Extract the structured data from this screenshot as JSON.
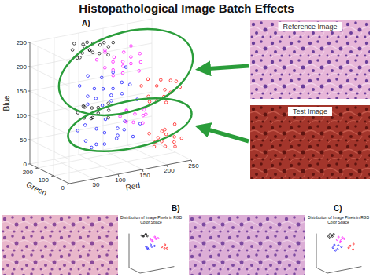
{
  "title": "Histopathological Image Batch Effects",
  "images": [
    {
      "label": "Reference Image"
    },
    {
      "label": "Test Image"
    }
  ],
  "chart_data": [
    {
      "panel": "A)",
      "type": "scatter3d",
      "x_label": "Red",
      "y_label": "Green",
      "z_label": "Blue",
      "xlim": [
        0,
        250
      ],
      "ylim": [
        0,
        250
      ],
      "zlim": [
        0,
        250
      ],
      "xticks": [
        50,
        100,
        150,
        200,
        250
      ],
      "yticks": [
        0,
        100,
        200
      ],
      "zticks": [
        0,
        50,
        100,
        150,
        200,
        250
      ],
      "grid": true,
      "series": [
        {
          "color": "#000000",
          "marker": "o",
          "points": [
            [
              55,
              150,
              240
            ],
            [
              65,
              170,
              248
            ],
            [
              72,
              140,
              232
            ],
            [
              80,
              160,
              245
            ],
            [
              88,
              175,
              236
            ],
            [
              95,
              145,
              228
            ],
            [
              102,
              165,
              242
            ],
            [
              110,
              150,
              222
            ],
            [
              118,
              170,
              235
            ],
            [
              125,
              140,
              218
            ],
            [
              132,
              160,
              230
            ],
            [
              60,
              135,
              225
            ],
            [
              85,
              150,
              250
            ],
            [
              100,
              180,
              226
            ],
            [
              140,
              155,
              238
            ],
            [
              75,
              165,
              218
            ],
            [
              115,
              135,
              246
            ],
            [
              92,
              155,
              232
            ]
          ]
        },
        {
          "color": "#ff00ff",
          "marker": "o",
          "points": [
            [
              105,
              150,
              210
            ],
            [
              115,
              130,
              195
            ],
            [
              125,
              160,
              220
            ],
            [
              135,
              140,
              185
            ],
            [
              145,
              165,
              205
            ],
            [
              150,
              125,
              178
            ],
            [
              160,
              150,
              215
            ],
            [
              170,
              135,
              192
            ],
            [
              178,
              160,
              200
            ],
            [
              185,
              130,
              175
            ],
            [
              195,
              150,
              188
            ],
            [
              120,
              145,
              228
            ],
            [
              140,
              155,
              170
            ],
            [
              165,
              170,
              182
            ],
            [
              190,
              140,
              208
            ],
            [
              155,
              140,
              198
            ],
            [
              130,
              125,
              205
            ],
            [
              175,
              150,
              225
            ]
          ]
        },
        {
          "color": "#0000ff",
          "marker": "o",
          "points": [
            [
              60,
              120,
              170
            ],
            [
              70,
              100,
              150
            ],
            [
              80,
              130,
              185
            ],
            [
              90,
              110,
              140
            ],
            [
              100,
              95,
              160
            ],
            [
              110,
              135,
              175
            ],
            [
              120,
              105,
              130
            ],
            [
              130,
              125,
              150
            ],
            [
              140,
              100,
              165
            ],
            [
              150,
              130,
              135
            ],
            [
              160,
              110,
              155
            ],
            [
              170,
              95,
              125
            ],
            [
              75,
              115,
              130
            ],
            [
              95,
              135,
              155
            ],
            [
              115,
              90,
              145
            ],
            [
              135,
              140,
              180
            ],
            [
              155,
              120,
              190
            ],
            [
              105,
              115,
              122
            ]
          ]
        },
        {
          "color": "#ff0000",
          "marker": "o",
          "points": [
            [
              180,
              100,
              150
            ],
            [
              188,
              80,
              130
            ],
            [
              195,
              105,
              160
            ],
            [
              202,
              70,
              120
            ],
            [
              210,
              95,
              145
            ],
            [
              218,
              60,
              115
            ],
            [
              225,
              90,
              135
            ],
            [
              232,
              75,
              155
            ],
            [
              240,
              100,
              125
            ],
            [
              248,
              65,
              140
            ],
            [
              200,
              110,
              112
            ],
            [
              215,
              85,
              158
            ],
            [
              228,
              105,
              118
            ],
            [
              245,
              80,
              150
            ]
          ]
        },
        {
          "color": "#000000",
          "marker": "o",
          "points": [
            [
              50,
              100,
              120
            ],
            [
              58,
              85,
              110
            ],
            [
              66,
              115,
              128
            ],
            [
              74,
              90,
              105
            ],
            [
              82,
              110,
              122
            ],
            [
              90,
              95,
              112
            ],
            [
              98,
              120,
              118
            ],
            [
              106,
              80,
              102
            ],
            [
              114,
              105,
              126
            ],
            [
              62,
              95,
              130
            ],
            [
              86,
              118,
              100
            ],
            [
              110,
              90,
              115
            ]
          ]
        },
        {
          "color": "#0000ff",
          "marker": "o",
          "points": [
            [
              40,
              70,
              90
            ],
            [
              50,
              50,
              70
            ],
            [
              60,
              85,
              95
            ],
            [
              70,
              45,
              60
            ],
            [
              80,
              75,
              85
            ],
            [
              90,
              55,
              55
            ],
            [
              100,
              80,
              100
            ],
            [
              110,
              40,
              65
            ],
            [
              120,
              65,
              80
            ],
            [
              130,
              50,
              95
            ],
            [
              140,
              85,
              70
            ],
            [
              150,
              60,
              58
            ],
            [
              160,
              45,
              85
            ],
            [
              65,
              60,
              52
            ],
            [
              95,
              70,
              75
            ],
            [
              125,
              80,
              62
            ]
          ]
        },
        {
          "color": "#ff00ff",
          "marker": "o",
          "points": [
            [
              130,
              80,
              100
            ],
            [
              138,
              65,
              90
            ],
            [
              146,
              90,
              108
            ],
            [
              154,
              70,
              85
            ],
            [
              162,
              85,
              98
            ],
            [
              170,
              60,
              82
            ],
            [
              178,
              75,
              105
            ],
            [
              186,
              90,
              92
            ],
            [
              142,
              75,
              110
            ],
            [
              174,
              70,
              95
            ]
          ]
        },
        {
          "color": "#ff0000",
          "marker": "o",
          "points": [
            [
              180,
              50,
              60
            ],
            [
              186,
              30,
              45
            ],
            [
              192,
              55,
              30
            ],
            [
              198,
              25,
              65
            ],
            [
              204,
              45,
              40
            ],
            [
              210,
              35,
              55
            ],
            [
              216,
              60,
              25
            ],
            [
              222,
              20,
              50
            ],
            [
              228,
              40,
              35
            ],
            [
              234,
              55,
              68
            ],
            [
              240,
              30,
              42
            ],
            [
              195,
              40,
              50
            ],
            [
              212,
              50,
              62
            ],
            [
              226,
              28,
              28
            ]
          ]
        }
      ]
    },
    {
      "panel": "B)",
      "type": "scatter3d",
      "title": "Distribution of Image Pixels in RGB Color Space",
      "xlim": [
        0,
        250
      ],
      "ylim": [
        0,
        250
      ],
      "zlim": [
        0,
        250
      ],
      "tick_labels": false,
      "series": [
        {
          "color": "#000000",
          "marker": "o",
          "points": [
            [
              60,
              150,
              240
            ],
            [
              75,
              165,
              230
            ],
            [
              90,
              145,
              245
            ],
            [
              105,
              160,
              225
            ],
            [
              70,
              135,
              235
            ],
            [
              95,
              170,
              238
            ]
          ]
        },
        {
          "color": "#ff00ff",
          "marker": "o",
          "points": [
            [
              120,
              140,
              205
            ],
            [
              135,
              155,
              190
            ],
            [
              150,
              130,
              215
            ],
            [
              165,
              150,
              195
            ],
            [
              140,
              145,
              180
            ],
            [
              175,
              135,
              200
            ]
          ]
        },
        {
          "color": "#0000ff",
          "marker": "o",
          "points": [
            [
              80,
              110,
              160
            ],
            [
              95,
              125,
              145
            ],
            [
              110,
              100,
              170
            ],
            [
              125,
              120,
              150
            ],
            [
              100,
              130,
              135
            ],
            [
              140,
              105,
              155
            ]
          ]
        },
        {
          "color": "#ff0000",
          "marker": "o",
          "points": [
            [
              190,
              95,
              140
            ],
            [
              205,
              80,
              130
            ],
            [
              215,
              100,
              150
            ],
            [
              225,
              85,
              125
            ]
          ]
        }
      ]
    },
    {
      "panel": "C)",
      "type": "scatter3d",
      "title": "Distribution of Image Pixels in RGB Color Space",
      "xlim": [
        0,
        250
      ],
      "ylim": [
        0,
        250
      ],
      "zlim": [
        0,
        250
      ],
      "tick_labels": false,
      "series": [
        {
          "color": "#000000",
          "marker": "o",
          "points": [
            [
              55,
              145,
              235
            ],
            [
              70,
              160,
              245
            ],
            [
              85,
              150,
              228
            ],
            [
              100,
              165,
              240
            ],
            [
              65,
              140,
              222
            ],
            [
              90,
              175,
              232
            ]
          ]
        },
        {
          "color": "#ff00ff",
          "marker": "o",
          "points": [
            [
              115,
              135,
              200
            ],
            [
              130,
              150,
              215
            ],
            [
              145,
              140,
              188
            ],
            [
              160,
              155,
              205
            ],
            [
              135,
              130,
              180
            ],
            [
              170,
              145,
              195
            ]
          ]
        },
        {
          "color": "#0000ff",
          "marker": "o",
          "points": [
            [
              75,
              105,
              155
            ],
            [
              90,
              120,
              170
            ],
            [
              105,
              95,
              140
            ],
            [
              120,
              125,
              160
            ],
            [
              95,
              110,
              130
            ],
            [
              135,
              100,
              150
            ]
          ]
        },
        {
          "color": "#ff0000",
          "marker": "o",
          "points": [
            [
              185,
              90,
              135
            ],
            [
              200,
              100,
              145
            ],
            [
              212,
              75,
              120
            ],
            [
              222,
              95,
              155
            ]
          ]
        }
      ]
    }
  ]
}
